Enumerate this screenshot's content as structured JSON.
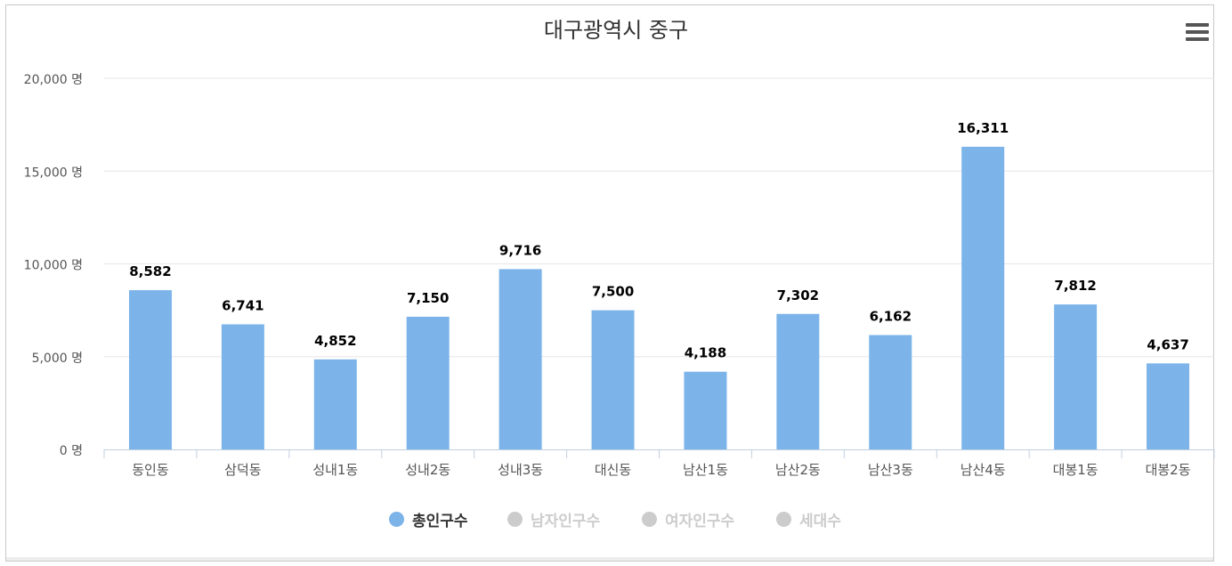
{
  "chart_data": {
    "type": "bar",
    "title": "대구광역시 중구",
    "categories": [
      "동인동",
      "삼덕동",
      "성내1동",
      "성내2동",
      "성내3동",
      "대신동",
      "남산1동",
      "남산2동",
      "남산3동",
      "남산4동",
      "대봉1동",
      "대봉2동"
    ],
    "series": [
      {
        "name": "총인구수",
        "values": [
          8582,
          6741,
          4852,
          7150,
          9716,
          7500,
          4188,
          7302,
          6162,
          16311,
          7812,
          4637
        ],
        "labels": [
          "8,582",
          "6,741",
          "4,852",
          "7,150",
          "9,716",
          "7,500",
          "4,188",
          "7,302",
          "6,162",
          "16,311",
          "7,812",
          "4,637"
        ],
        "color": "#7cb4ea",
        "visible": true
      }
    ],
    "yticks": [
      0,
      5000,
      10000,
      15000,
      20000
    ],
    "ytick_labels": [
      "0 명",
      "5,000 명",
      "10,000 명",
      "15,000 명",
      "20,000 명"
    ],
    "ylim": [
      0,
      20000
    ],
    "grid": true,
    "legend_position": "bottom-center"
  },
  "legend": [
    {
      "label": "총인구수",
      "color": "#7cb4ea",
      "active": true
    },
    {
      "label": "남자인구수",
      "color": "#cccccc",
      "active": false
    },
    {
      "label": "여자인구수",
      "color": "#cccccc",
      "active": false
    },
    {
      "label": "세대수",
      "color": "#cccccc",
      "active": false
    }
  ],
  "menu_icon": "hamburger-menu-icon"
}
